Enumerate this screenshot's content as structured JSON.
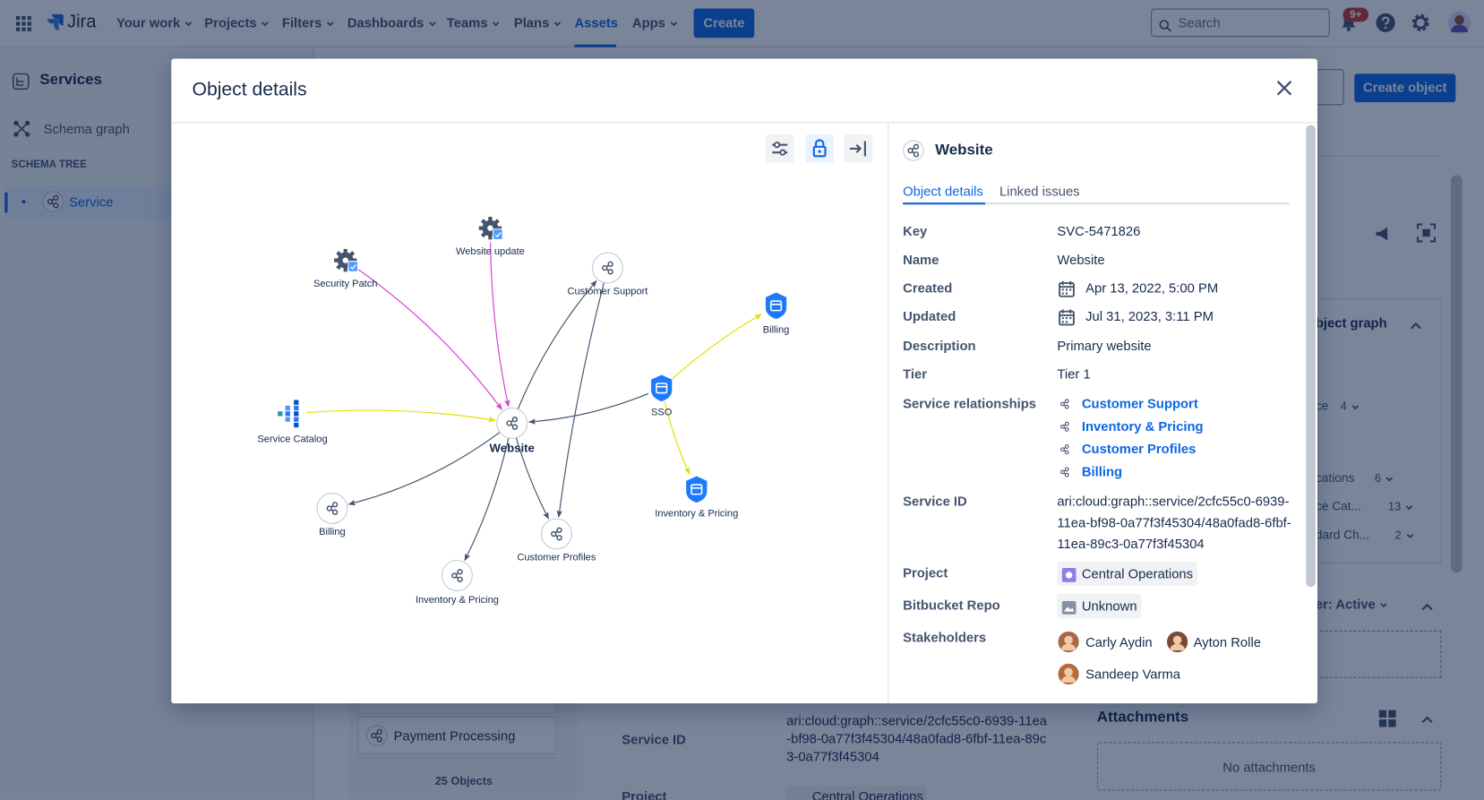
{
  "nav": {
    "logo": "Jira",
    "items": [
      "Your work",
      "Projects",
      "Filters",
      "Dashboards",
      "Teams",
      "Plans",
      "Assets",
      "Apps"
    ],
    "create": "Create",
    "search": "Search",
    "badge": "9+"
  },
  "sidebar": {
    "title": "Services",
    "schema_graph": "Schema graph",
    "section": "SCHEMA TREE",
    "tree_item": "Service"
  },
  "background": {
    "create_object": "Create object",
    "object_graph": "bject graph",
    "filters": [
      {
        "label": "ce",
        "count": "4"
      },
      {
        "label": "cations",
        "count": "6"
      },
      {
        "label": "ce Cat...",
        "count": "13"
      },
      {
        "label": "dard Ch...",
        "count": "2"
      }
    ],
    "status_filter": "er: Active",
    "attachments": "Attachments",
    "no_attachments": "No attachments",
    "list_item": "Payment Processing",
    "objects_count": "25 Objects",
    "service_id_label": "Service ID",
    "service_id_value": "ari:cloud:graph::service/2cfc55c0-6939-11ea-bf98-0a77f3f45304/48a0fad8-6fbf-11ea-89c3-0a77f3f45304",
    "project_label": "Project",
    "project_value": "Central Operations"
  },
  "modal": {
    "title": "Object details",
    "graph": {
      "nodes": [
        "Security Patch",
        "Website update",
        "Customer Support",
        "Billing",
        "Service Catalog",
        "Website",
        "SSO",
        "Billing",
        "Customer Profiles",
        "Inventory & Pricing",
        "Inventory & Pricing"
      ]
    },
    "details": {
      "title": "Website",
      "tabs": [
        "Object details",
        "Linked issues"
      ],
      "fields": [
        {
          "label": "Key",
          "value": "SVC-5471826"
        },
        {
          "label": "Name",
          "value": "Website"
        },
        {
          "label": "Created",
          "value": "Apr 13, 2022, 5:00 PM"
        },
        {
          "label": "Updated",
          "value": "Jul 31, 2023, 3:11 PM"
        },
        {
          "label": "Description",
          "value": "Primary website"
        },
        {
          "label": "Tier",
          "value": "Tier 1"
        },
        {
          "label": "Service relationships",
          "values": [
            "Customer Support",
            "Inventory & Pricing",
            "Customer Profiles",
            "Billing"
          ]
        },
        {
          "label": "Service ID",
          "value": "ari:cloud:graph::service/2cfc55c0-6939-11ea-bf98-0a77f3f45304/48a0fad8-6fbf-11ea-89c3-0a77f3f45304"
        },
        {
          "label": "Project",
          "value": "Central Operations"
        },
        {
          "label": "Bitbucket Repo",
          "value": "Unknown"
        },
        {
          "label": "Stakeholders",
          "values": [
            "Carly Aydin",
            "Ayton Rolle",
            "Sandeep Varma"
          ]
        }
      ]
    }
  }
}
